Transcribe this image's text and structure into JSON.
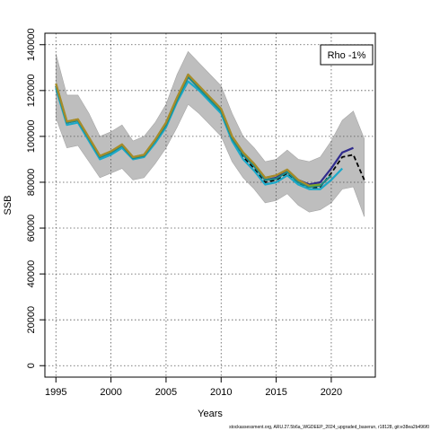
{
  "chart_data": {
    "type": "line",
    "title": "",
    "xlabel": "Years",
    "ylabel": "SSB",
    "xlim": [
      1994,
      2024
    ],
    "ylim": [
      -5000,
      145000
    ],
    "x_ticks": [
      1995,
      2000,
      2005,
      2010,
      2015,
      2020
    ],
    "y_ticks": [
      0,
      20000,
      40000,
      60000,
      80000,
      100000,
      120000,
      140000
    ],
    "grid": true,
    "legend_placement": "top-right",
    "legend_text": "Rho -1%",
    "footer": "stockassessment.org, ARU.27.5b6a_WGDEEP_2024_upgraded_baserun, r18128, git:e38ea2b496f0",
    "band": {
      "x": [
        1995,
        1996,
        1997,
        1998,
        1999,
        2000,
        2001,
        2002,
        2003,
        2004,
        2005,
        2006,
        2007,
        2008,
        2009,
        2010,
        2011,
        2012,
        2013,
        2014,
        2015,
        2016,
        2017,
        2018,
        2019,
        2020,
        2021,
        2022,
        2023
      ],
      "upper": [
        136000,
        118000,
        118000,
        110000,
        100000,
        102000,
        105000,
        98000,
        100000,
        106000,
        114000,
        127000,
        137000,
        132000,
        127000,
        122000,
        110000,
        100000,
        95000,
        89000,
        90000,
        94000,
        90000,
        89000,
        91000,
        98000,
        107000,
        111000,
        99000
      ],
      "lower": [
        108000,
        95000,
        96000,
        89000,
        82000,
        84000,
        86000,
        81000,
        82000,
        88000,
        95000,
        104000,
        114000,
        110000,
        105000,
        100000,
        89000,
        82000,
        77000,
        71000,
        72000,
        75000,
        70000,
        67000,
        68000,
        71000,
        77000,
        78000,
        65000
      ]
    },
    "series": [
      {
        "color": "#000000",
        "dashed": true,
        "x": [
          1995,
          1996,
          1997,
          1998,
          1999,
          2000,
          2001,
          2002,
          2003,
          2004,
          2005,
          2006,
          2007,
          2008,
          2009,
          2010,
          2011,
          2012,
          2013,
          2014,
          2015,
          2016,
          2017,
          2018,
          2019,
          2020,
          2021,
          2022,
          2023
        ],
        "values": [
          122000,
          106000,
          107000,
          99000,
          91000,
          93000,
          96000,
          90500,
          91500,
          98000,
          105000,
          116000,
          126000,
          121000,
          116000,
          111000,
          99000,
          91000,
          86000,
          80000,
          81000,
          84000,
          80000,
          77000,
          78000,
          84000,
          91000,
          92000,
          81000
        ]
      },
      {
        "color": "#2f2a8c",
        "dashed": false,
        "x": [
          1995,
          1996,
          1997,
          1998,
          1999,
          2000,
          2001,
          2002,
          2003,
          2004,
          2005,
          2006,
          2007,
          2008,
          2009,
          2010,
          2011,
          2012,
          2013,
          2014,
          2015,
          2016,
          2017,
          2018,
          2019,
          2020,
          2021,
          2022
        ],
        "values": [
          122000,
          106000,
          107000,
          99000,
          91000,
          93000,
          96000,
          90500,
          91500,
          98000,
          105000,
          116000,
          126000,
          121000,
          116000,
          111000,
          99000,
          92000,
          87000,
          81000,
          82000,
          85000,
          81000,
          79000,
          80000,
          86000,
          93000,
          95000
        ]
      },
      {
        "color": "#1aa9c9",
        "dashed": false,
        "x": [
          1995,
          1996,
          1997,
          1998,
          1999,
          2000,
          2001,
          2002,
          2003,
          2004,
          2005,
          2006,
          2007,
          2008,
          2009,
          2010,
          2011,
          2012,
          2013,
          2014,
          2015,
          2016,
          2017,
          2018,
          2019,
          2020,
          2021
        ],
        "values": [
          121000,
          105000,
          106000,
          98000,
          90000,
          92000,
          95000,
          90000,
          91000,
          97000,
          104000,
          115000,
          124000,
          120000,
          115000,
          110000,
          98000,
          90000,
          85000,
          79000,
          80000,
          83000,
          79000,
          77000,
          77000,
          81000,
          86000
        ]
      },
      {
        "color": "#1d8a86",
        "dashed": false,
        "x": [
          1995,
          1996,
          1997,
          1998,
          1999,
          2000,
          2001,
          2002,
          2003,
          2004,
          2005,
          2006,
          2007,
          2008,
          2009,
          2010,
          2011,
          2012,
          2013,
          2014,
          2015,
          2016,
          2017,
          2018,
          2019,
          2020
        ],
        "values": [
          122000,
          106000,
          107000,
          99000,
          91000,
          93000,
          96000,
          90500,
          91500,
          98000,
          105000,
          116000,
          126000,
          121000,
          116000,
          111000,
          99000,
          92000,
          87000,
          81000,
          81500,
          84500,
          80000,
          78000,
          78500,
          83000
        ]
      },
      {
        "color": "#7da82b",
        "dashed": false,
        "x": [
          1995,
          1996,
          1997,
          1998,
          1999,
          2000,
          2001,
          2002,
          2003,
          2004,
          2005,
          2006,
          2007,
          2008,
          2009,
          2010,
          2011,
          2012,
          2013,
          2014,
          2015,
          2016,
          2017,
          2018,
          2019
        ],
        "values": [
          123000,
          106500,
          107500,
          99500,
          91500,
          93500,
          96500,
          91000,
          92000,
          98500,
          106000,
          117000,
          127000,
          122000,
          117000,
          112000,
          100000,
          93000,
          88000,
          82000,
          83000,
          85500,
          81000,
          78500,
          79000
        ]
      },
      {
        "color": "#a88a2a",
        "dashed": false,
        "x": [
          1995,
          1996,
          1997,
          1998,
          1999,
          2000,
          2001,
          2002,
          2003,
          2004,
          2005,
          2006,
          2007,
          2008,
          2009,
          2010,
          2011,
          2012,
          2013,
          2014,
          2015,
          2016,
          2017,
          2018
        ],
        "values": [
          123000,
          106500,
          107500,
          99500,
          91500,
          93500,
          96500,
          91000,
          92000,
          98500,
          106000,
          117000,
          127000,
          122000,
          117000,
          112000,
          100000,
          93000,
          88000,
          82000,
          83000,
          85500,
          81000,
          78500
        ]
      }
    ]
  }
}
